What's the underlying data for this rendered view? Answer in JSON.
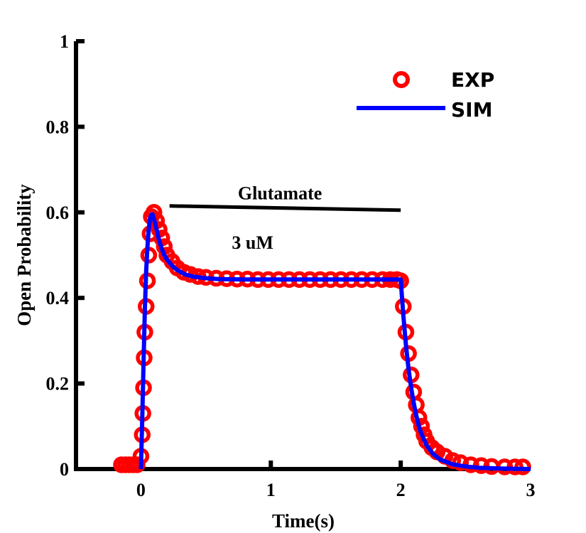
{
  "chart_data": {
    "type": "scatter",
    "xlabel": "Time(s)",
    "ylabel": "Open Probability",
    "xlim": [
      -0.5,
      3
    ],
    "ylim": [
      0,
      1
    ],
    "xticks": [
      0,
      1,
      2,
      3
    ],
    "xtick_labels": [
      "0",
      "1",
      "2",
      "3"
    ],
    "yticks": [
      0,
      0.2,
      0.4,
      0.6,
      0.8,
      1
    ],
    "ytick_labels": [
      "0",
      "0.2",
      "0.4",
      "0.6",
      "0.8",
      "1"
    ],
    "grid": false,
    "legend_position": "top-right",
    "annotations": {
      "bar_label": "Glutamate",
      "concentration": "3 uM",
      "bar_start": [
        0.22,
        0.615
      ],
      "bar_end": [
        2.0,
        0.605
      ]
    },
    "series": [
      {
        "name": "EXP",
        "style": "markers",
        "color": "#ff0000",
        "x": [
          -0.15,
          -0.12,
          -0.09,
          -0.06,
          -0.03,
          0.0,
          0.01,
          0.015,
          0.02,
          0.025,
          0.03,
          0.04,
          0.05,
          0.06,
          0.07,
          0.08,
          0.1,
          0.12,
          0.14,
          0.16,
          0.18,
          0.2,
          0.24,
          0.28,
          0.33,
          0.38,
          0.44,
          0.5,
          0.58,
          0.66,
          0.74,
          0.82,
          0.9,
          0.98,
          1.06,
          1.14,
          1.22,
          1.3,
          1.38,
          1.46,
          1.54,
          1.62,
          1.7,
          1.78,
          1.86,
          1.92,
          1.97,
          2.0,
          2.02,
          2.04,
          2.06,
          2.08,
          2.1,
          2.12,
          2.14,
          2.16,
          2.18,
          2.2,
          2.24,
          2.28,
          2.34,
          2.4,
          2.46,
          2.54,
          2.62,
          2.7,
          2.8,
          2.88,
          2.94
        ],
        "values": [
          0.01,
          0.01,
          0.01,
          0.01,
          0.01,
          0.03,
          0.08,
          0.13,
          0.19,
          0.26,
          0.32,
          0.38,
          0.44,
          0.5,
          0.55,
          0.59,
          0.6,
          0.58,
          0.56,
          0.54,
          0.52,
          0.5,
          0.485,
          0.47,
          0.46,
          0.455,
          0.45,
          0.448,
          0.446,
          0.445,
          0.444,
          0.444,
          0.443,
          0.443,
          0.443,
          0.443,
          0.443,
          0.443,
          0.443,
          0.443,
          0.443,
          0.443,
          0.443,
          0.443,
          0.443,
          0.443,
          0.443,
          0.44,
          0.38,
          0.32,
          0.27,
          0.22,
          0.18,
          0.15,
          0.12,
          0.1,
          0.08,
          0.065,
          0.05,
          0.04,
          0.03,
          0.02,
          0.015,
          0.01,
          0.008,
          0.006,
          0.005,
          0.005,
          0.005
        ]
      },
      {
        "name": "SIM",
        "style": "line",
        "color": "#0000ff",
        "x": [
          0.0,
          0.01,
          0.02,
          0.03,
          0.04,
          0.05,
          0.06,
          0.07,
          0.08,
          0.09,
          0.1,
          0.12,
          0.14,
          0.16,
          0.18,
          0.2,
          0.24,
          0.28,
          0.34,
          0.4,
          0.5,
          0.6,
          0.8,
          1.0,
          1.2,
          1.4,
          1.6,
          1.8,
          1.95,
          2.0,
          2.02,
          2.04,
          2.06,
          2.08,
          2.1,
          2.12,
          2.14,
          2.16,
          2.2,
          2.25,
          2.3,
          2.4,
          2.5,
          2.6,
          2.8,
          3.0
        ],
        "values": [
          0.0,
          0.12,
          0.25,
          0.37,
          0.46,
          0.52,
          0.56,
          0.585,
          0.595,
          0.595,
          0.585,
          0.56,
          0.535,
          0.515,
          0.5,
          0.49,
          0.475,
          0.465,
          0.455,
          0.45,
          0.446,
          0.444,
          0.443,
          0.443,
          0.443,
          0.443,
          0.443,
          0.443,
          0.443,
          0.443,
          0.36,
          0.29,
          0.235,
          0.19,
          0.155,
          0.125,
          0.1,
          0.082,
          0.055,
          0.035,
          0.023,
          0.011,
          0.006,
          0.003,
          0.001,
          0.0
        ]
      }
    ]
  }
}
